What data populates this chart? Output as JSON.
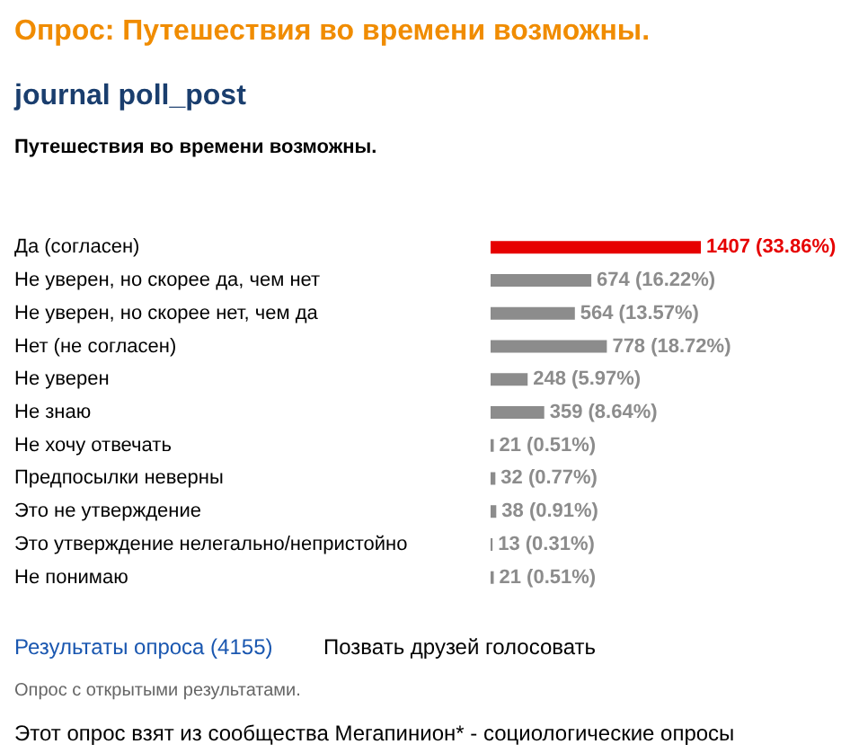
{
  "chart_data": {
    "type": "bar",
    "orientation": "horizontal",
    "title": "Опрос: Путешествия во времени возможны.",
    "subtitle": "journal poll_post",
    "categories": [
      "Да (согласен)",
      "Не уверен, но скорее да, чем нет",
      "Не уверен, но скорее нет, чем да",
      "Нет (не согласен)",
      "Не уверен",
      "Не знаю",
      "Не хочу отвечать",
      "Предпосылки неверны",
      "Это не утверждение",
      "Это утверждение нелегально/непристойно",
      "Не понимаю"
    ],
    "values": [
      1407,
      674,
      564,
      778,
      248,
      359,
      21,
      32,
      38,
      13,
      21
    ],
    "value_labels": [
      "1407 (33.86%)",
      "674 (16.22%)",
      "564 (13.57%)",
      "778 (18.72%)",
      "248 (5.97%)",
      "359 (8.64%)",
      "21 (0.51%)",
      "32 (0.77%)",
      "38 (0.91%)",
      "13 (0.31%)",
      "21 (0.51%)"
    ],
    "colors": [
      "#e60000",
      "#8c8c8c",
      "#8c8c8c",
      "#8c8c8c",
      "#8c8c8c",
      "#8c8c8c",
      "#8c8c8c",
      "#8c8c8c",
      "#8c8c8c",
      "#8c8c8c",
      "#8c8c8c"
    ],
    "annotations": [
      "Путешествия во времени возможны.",
      "Результаты опроса (4155)",
      "Позвать друзей голосовать",
      "Опрос с открытыми результатами.",
      "Этот опрос взят из сообщества Мегапинион* - социологические опросы"
    ]
  }
}
